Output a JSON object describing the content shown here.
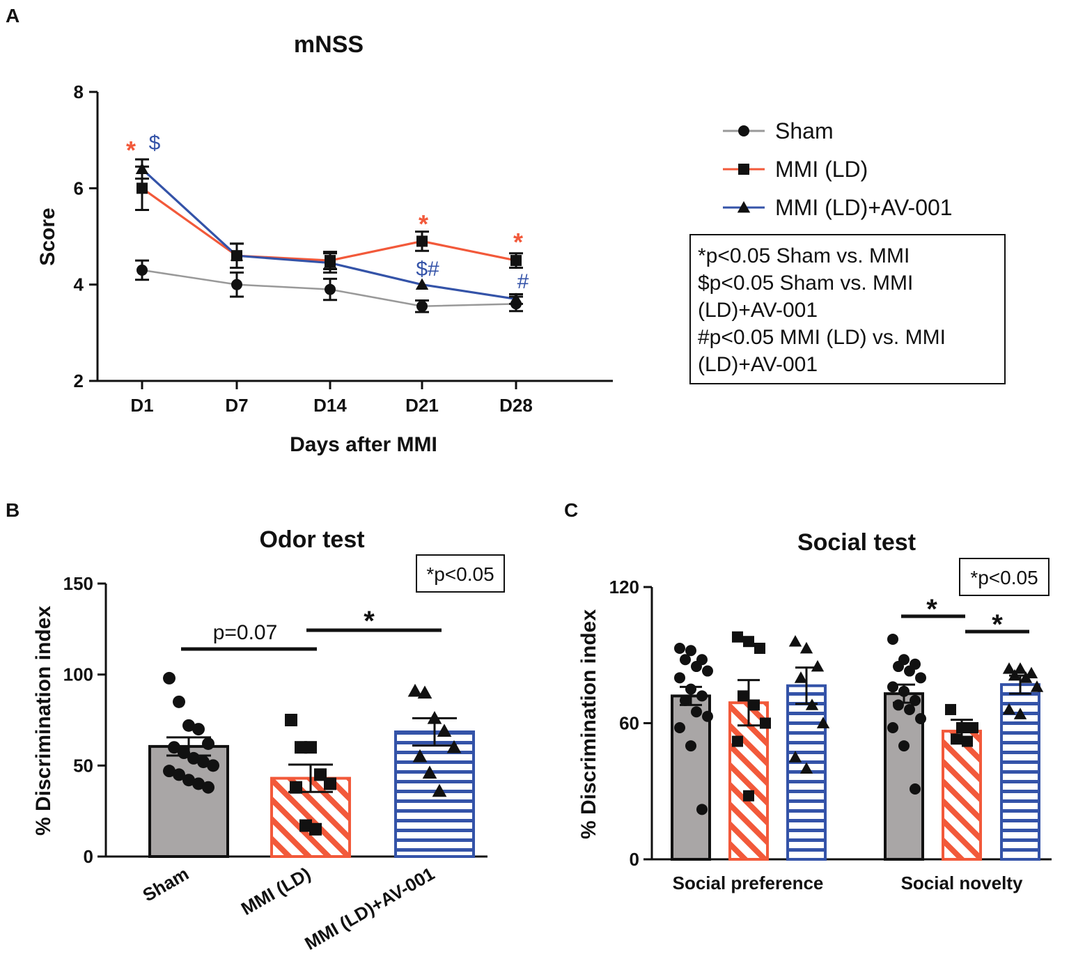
{
  "colors": {
    "sham": "#999999",
    "ld": "#f2593a",
    "av": "#3453a8",
    "dark": "#111111",
    "sham_bar": "#a9a6a6"
  },
  "chart_data": [
    {
      "panel": "A",
      "type": "line",
      "title": "mNSS",
      "xlabel": "Days after MMI",
      "ylabel": "Score",
      "categories": [
        "D1",
        "D7",
        "D14",
        "D21",
        "D28"
      ],
      "ylim": [
        2,
        8
      ],
      "yticks": [
        "2",
        "4",
        "6",
        "8"
      ],
      "series": [
        {
          "name": "Sham",
          "marker": "circle",
          "values": [
            4.3,
            4.0,
            3.9,
            3.55,
            3.6
          ],
          "err": [
            0.2,
            0.25,
            0.22,
            0.12,
            0.15
          ]
        },
        {
          "name": "MMI (LD)",
          "marker": "square",
          "values": [
            6.0,
            4.6,
            4.5,
            4.9,
            4.5
          ],
          "err": [
            0.45,
            0.25,
            0.18,
            0.2,
            0.15
          ]
        },
        {
          "name": "MMI (LD)+AV-001",
          "marker": "triangle",
          "values": [
            6.4,
            4.6,
            4.45,
            4.0,
            3.7
          ],
          "err": [
            0.2,
            0.25,
            0.2,
            0.0,
            0.1
          ]
        }
      ],
      "annotations": {
        "d1_star": "*",
        "d1_dollar": "$",
        "d21_star": "*",
        "d21_dollar_hash": "$#",
        "d28_star": "*",
        "d28_hash": "#"
      },
      "stats_note": [
        "*p<0.05 Sham vs. MMI",
        "$p<0.05 Sham vs. MMI",
        "(LD)+AV-001",
        "#p<0.05 MMI (LD) vs. MMI",
        "(LD)+AV-001"
      ]
    },
    {
      "panel": "B",
      "type": "bar",
      "title": "Odor test",
      "ylabel": "% Discrimination index",
      "categories": [
        "Sham",
        "MMI (LD)",
        "MMI (LD)+AV-001"
      ],
      "ylim": [
        0,
        150
      ],
      "yticks": [
        "0",
        "50",
        "100",
        "150"
      ],
      "values": [
        60.5,
        43,
        68.5
      ],
      "err": [
        5,
        7.5,
        7.5
      ],
      "points": [
        [
          98,
          85,
          72,
          70,
          62,
          60,
          57,
          54,
          52,
          50,
          47,
          45,
          42,
          40,
          38
        ],
        [
          75,
          60,
          60,
          45,
          40,
          38,
          17,
          15
        ],
        [
          91,
          90,
          76,
          69,
          60,
          55,
          46,
          36
        ]
      ],
      "sig": {
        "label_left": "p=0.07",
        "label_right": "*"
      },
      "box": "*p<0.05"
    },
    {
      "panel": "C",
      "type": "bar",
      "title": "Social test",
      "ylabel": "% Discrimination index",
      "groups": [
        "Social preference",
        "Social novelty"
      ],
      "ylim": [
        0,
        120
      ],
      "yticks": [
        "0",
        "60",
        "120"
      ],
      "values": [
        [
          72,
          69,
          76.5
        ],
        [
          73,
          56.5,
          77
        ]
      ],
      "err": [
        [
          4,
          10,
          8
        ],
        [
          4,
          5,
          4
        ]
      ],
      "points": [
        [
          [
            93,
            92,
            88,
            88,
            85,
            83,
            80,
            75,
            72,
            70,
            65,
            63,
            58,
            50,
            22
          ],
          [
            98,
            96,
            93,
            72,
            68,
            60,
            52,
            28
          ],
          [
            96,
            93,
            85,
            80,
            68,
            60,
            45,
            40
          ]
        ],
        [
          [
            97,
            88,
            86,
            85,
            83,
            80,
            76,
            74,
            70,
            68,
            66,
            62,
            58,
            50,
            31
          ],
          [
            66,
            58,
            58,
            53,
            52
          ],
          [
            84,
            84,
            82,
            81,
            80,
            76,
            66,
            64
          ]
        ]
      ],
      "sig": {
        "left": "*",
        "right": "*"
      },
      "box": "*p<0.05"
    }
  ],
  "legend": [
    "Sham",
    "MMI (LD)",
    "MMI (LD)+AV-001"
  ],
  "panel_labels": [
    "A",
    "B",
    "C"
  ]
}
